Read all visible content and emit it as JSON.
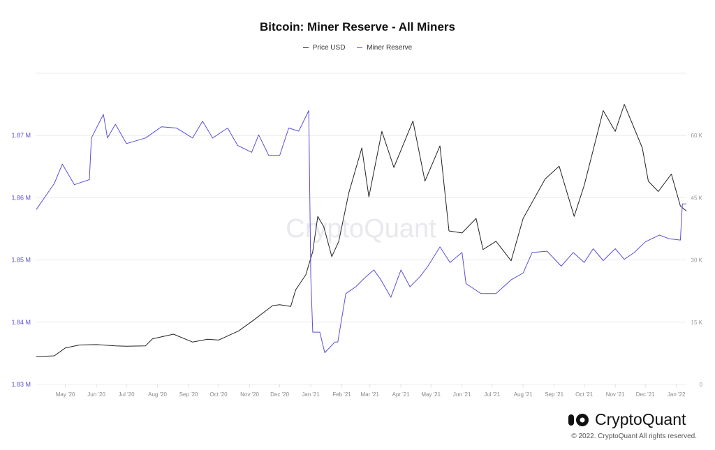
{
  "chart_data": {
    "type": "line",
    "title": "Bitcoin: Miner Reserve - All Miners",
    "xlim": [
      "2020-04-02",
      "2022-01-11"
    ],
    "x_ticks": [
      {
        "date": "2020-05-01",
        "label": "May '20"
      },
      {
        "date": "2020-06-01",
        "label": "Jun '20"
      },
      {
        "date": "2020-07-01",
        "label": "Jul '20"
      },
      {
        "date": "2020-08-01",
        "label": "Aug '20"
      },
      {
        "date": "2020-09-01",
        "label": "Sep '20"
      },
      {
        "date": "2020-10-01",
        "label": "Oct '20"
      },
      {
        "date": "2020-11-01",
        "label": "Nov '20"
      },
      {
        "date": "2020-12-01",
        "label": "Dec '20"
      },
      {
        "date": "2021-01-01",
        "label": "Jan '21"
      },
      {
        "date": "2021-02-01",
        "label": "Feb '21"
      },
      {
        "date": "2021-03-01",
        "label": "Mar '21"
      },
      {
        "date": "2021-04-01",
        "label": "Apr '21"
      },
      {
        "date": "2021-05-01",
        "label": "May '21"
      },
      {
        "date": "2021-06-01",
        "label": "Jun '21"
      },
      {
        "date": "2021-07-01",
        "label": "Jul '21"
      },
      {
        "date": "2021-08-01",
        "label": "Aug '21"
      },
      {
        "date": "2021-09-01",
        "label": "Sep '21"
      },
      {
        "date": "2021-10-01",
        "label": "Oct '21"
      },
      {
        "date": "2021-11-01",
        "label": "Nov '21"
      },
      {
        "date": "2021-12-01",
        "label": "Dec '21"
      },
      {
        "date": "2022-01-01",
        "label": "Jan '22"
      }
    ],
    "y_left": {
      "ylim": [
        1.83,
        1.88
      ],
      "ticks": [
        1.83,
        1.84,
        1.85,
        1.86,
        1.87
      ],
      "tick_labels": [
        "1.83 M",
        "1.84 M",
        "1.85 M",
        "1.86 M",
        "1.87 M"
      ],
      "unit": "M"
    },
    "y_right": {
      "ylim": [
        0,
        75000
      ],
      "ticks": [
        0,
        15000,
        30000,
        45000,
        60000
      ],
      "tick_labels": [
        "0",
        "15 K",
        "30 K",
        "45 K",
        "60 K"
      ]
    },
    "grid": true,
    "legend_position": "top",
    "series": [
      {
        "name": "Price USD",
        "axis": "right",
        "color": "#222222",
        "points": [
          [
            "2020-04-02",
            6700
          ],
          [
            "2020-04-20",
            6900
          ],
          [
            "2020-05-01",
            8800
          ],
          [
            "2020-05-15",
            9500
          ],
          [
            "2020-06-01",
            9600
          ],
          [
            "2020-06-20",
            9300
          ],
          [
            "2020-07-01",
            9200
          ],
          [
            "2020-07-20",
            9300
          ],
          [
            "2020-07-27",
            11000
          ],
          [
            "2020-08-17",
            12100
          ],
          [
            "2020-09-05",
            10200
          ],
          [
            "2020-09-20",
            10900
          ],
          [
            "2020-10-01",
            10700
          ],
          [
            "2020-10-21",
            12900
          ],
          [
            "2020-11-05",
            15500
          ],
          [
            "2020-11-24",
            19000
          ],
          [
            "2020-12-01",
            19200
          ],
          [
            "2020-12-12",
            18800
          ],
          [
            "2020-12-17",
            22800
          ],
          [
            "2020-12-27",
            26400
          ],
          [
            "2021-01-03",
            32000
          ],
          [
            "2021-01-08",
            40500
          ],
          [
            "2021-01-14",
            38000
          ],
          [
            "2021-01-22",
            30800
          ],
          [
            "2021-01-29",
            34500
          ],
          [
            "2021-02-08",
            46200
          ],
          [
            "2021-02-21",
            57000
          ],
          [
            "2021-02-28",
            45200
          ],
          [
            "2021-03-13",
            61000
          ],
          [
            "2021-03-25",
            52300
          ],
          [
            "2021-04-13",
            63500
          ],
          [
            "2021-04-25",
            49000
          ],
          [
            "2021-05-10",
            57500
          ],
          [
            "2021-05-19",
            37000
          ],
          [
            "2021-06-01",
            36500
          ],
          [
            "2021-06-15",
            40000
          ],
          [
            "2021-06-22",
            32500
          ],
          [
            "2021-07-05",
            34500
          ],
          [
            "2021-07-20",
            29800
          ],
          [
            "2021-08-01",
            40000
          ],
          [
            "2021-08-23",
            49500
          ],
          [
            "2021-09-06",
            52600
          ],
          [
            "2021-09-21",
            40500
          ],
          [
            "2021-10-01",
            48000
          ],
          [
            "2021-10-20",
            66000
          ],
          [
            "2021-11-01",
            61000
          ],
          [
            "2021-11-10",
            67500
          ],
          [
            "2021-11-28",
            57000
          ],
          [
            "2021-12-04",
            49000
          ],
          [
            "2021-12-14",
            46500
          ],
          [
            "2021-12-27",
            50700
          ],
          [
            "2022-01-05",
            43000
          ],
          [
            "2022-01-11",
            41800
          ]
        ]
      },
      {
        "name": "Miner Reserve",
        "axis": "left",
        "unit": "M",
        "color": "#5b4fd6",
        "points": [
          [
            "2020-04-02",
            1.8581
          ],
          [
            "2020-04-20",
            1.8623
          ],
          [
            "2020-04-28",
            1.8654
          ],
          [
            "2020-05-10",
            1.8621
          ],
          [
            "2020-05-25",
            1.8629
          ],
          [
            "2020-05-27",
            1.8696
          ],
          [
            "2020-06-08",
            1.8734
          ],
          [
            "2020-06-12",
            1.8696
          ],
          [
            "2020-06-20",
            1.8718
          ],
          [
            "2020-07-01",
            1.8687
          ],
          [
            "2020-07-20",
            1.8696
          ],
          [
            "2020-08-05",
            1.8714
          ],
          [
            "2020-08-20",
            1.8712
          ],
          [
            "2020-09-05",
            1.8696
          ],
          [
            "2020-09-15",
            1.8723
          ],
          [
            "2020-09-25",
            1.8696
          ],
          [
            "2020-10-10",
            1.8712
          ],
          [
            "2020-10-20",
            1.8684
          ],
          [
            "2020-11-03",
            1.8673
          ],
          [
            "2020-11-10",
            1.8701
          ],
          [
            "2020-11-20",
            1.8668
          ],
          [
            "2020-12-01",
            1.8668
          ],
          [
            "2020-12-10",
            1.8712
          ],
          [
            "2020-12-20",
            1.8707
          ],
          [
            "2020-12-30",
            1.874
          ],
          [
            "2021-01-01",
            1.8473
          ],
          [
            "2021-01-03",
            1.8384
          ],
          [
            "2021-01-10",
            1.8384
          ],
          [
            "2021-01-15",
            1.8351
          ],
          [
            "2021-01-25",
            1.8368
          ],
          [
            "2021-01-28",
            1.8368
          ],
          [
            "2021-02-05",
            1.8446
          ],
          [
            "2021-02-15",
            1.8457
          ],
          [
            "2021-02-25",
            1.8473
          ],
          [
            "2021-03-05",
            1.8484
          ],
          [
            "2021-03-12",
            1.8468
          ],
          [
            "2021-03-22",
            1.844
          ],
          [
            "2021-04-01",
            1.8484
          ],
          [
            "2021-04-10",
            1.8457
          ],
          [
            "2021-04-20",
            1.8473
          ],
          [
            "2021-04-28",
            1.849
          ],
          [
            "2021-05-10",
            1.8521
          ],
          [
            "2021-05-20",
            1.8496
          ],
          [
            "2021-06-01",
            1.8512
          ],
          [
            "2021-06-05",
            1.8462
          ],
          [
            "2021-06-20",
            1.8446
          ],
          [
            "2021-07-05",
            1.8446
          ],
          [
            "2021-07-20",
            1.8468
          ],
          [
            "2021-08-01",
            1.8479
          ],
          [
            "2021-08-10",
            1.8512
          ],
          [
            "2021-08-25",
            1.8514
          ],
          [
            "2021-09-08",
            1.849
          ],
          [
            "2021-09-20",
            1.8512
          ],
          [
            "2021-10-01",
            1.8496
          ],
          [
            "2021-10-10",
            1.8518
          ],
          [
            "2021-10-20",
            1.8499
          ],
          [
            "2021-11-01",
            1.8518
          ],
          [
            "2021-11-10",
            1.8501
          ],
          [
            "2021-11-20",
            1.8512
          ],
          [
            "2021-12-01",
            1.8529
          ],
          [
            "2021-12-15",
            1.854
          ],
          [
            "2021-12-25",
            1.8534
          ],
          [
            "2022-01-05",
            1.8532
          ],
          [
            "2022-01-07",
            1.859
          ],
          [
            "2022-01-11",
            1.859
          ]
        ]
      }
    ]
  },
  "legend": {
    "price_label": "Price USD",
    "reserve_label": "Miner Reserve"
  },
  "watermark": "CryptoQuant",
  "footer": {
    "logo_text": "CryptoQuant",
    "copyright": "© 2022. CryptoQuant All rights reserved."
  }
}
